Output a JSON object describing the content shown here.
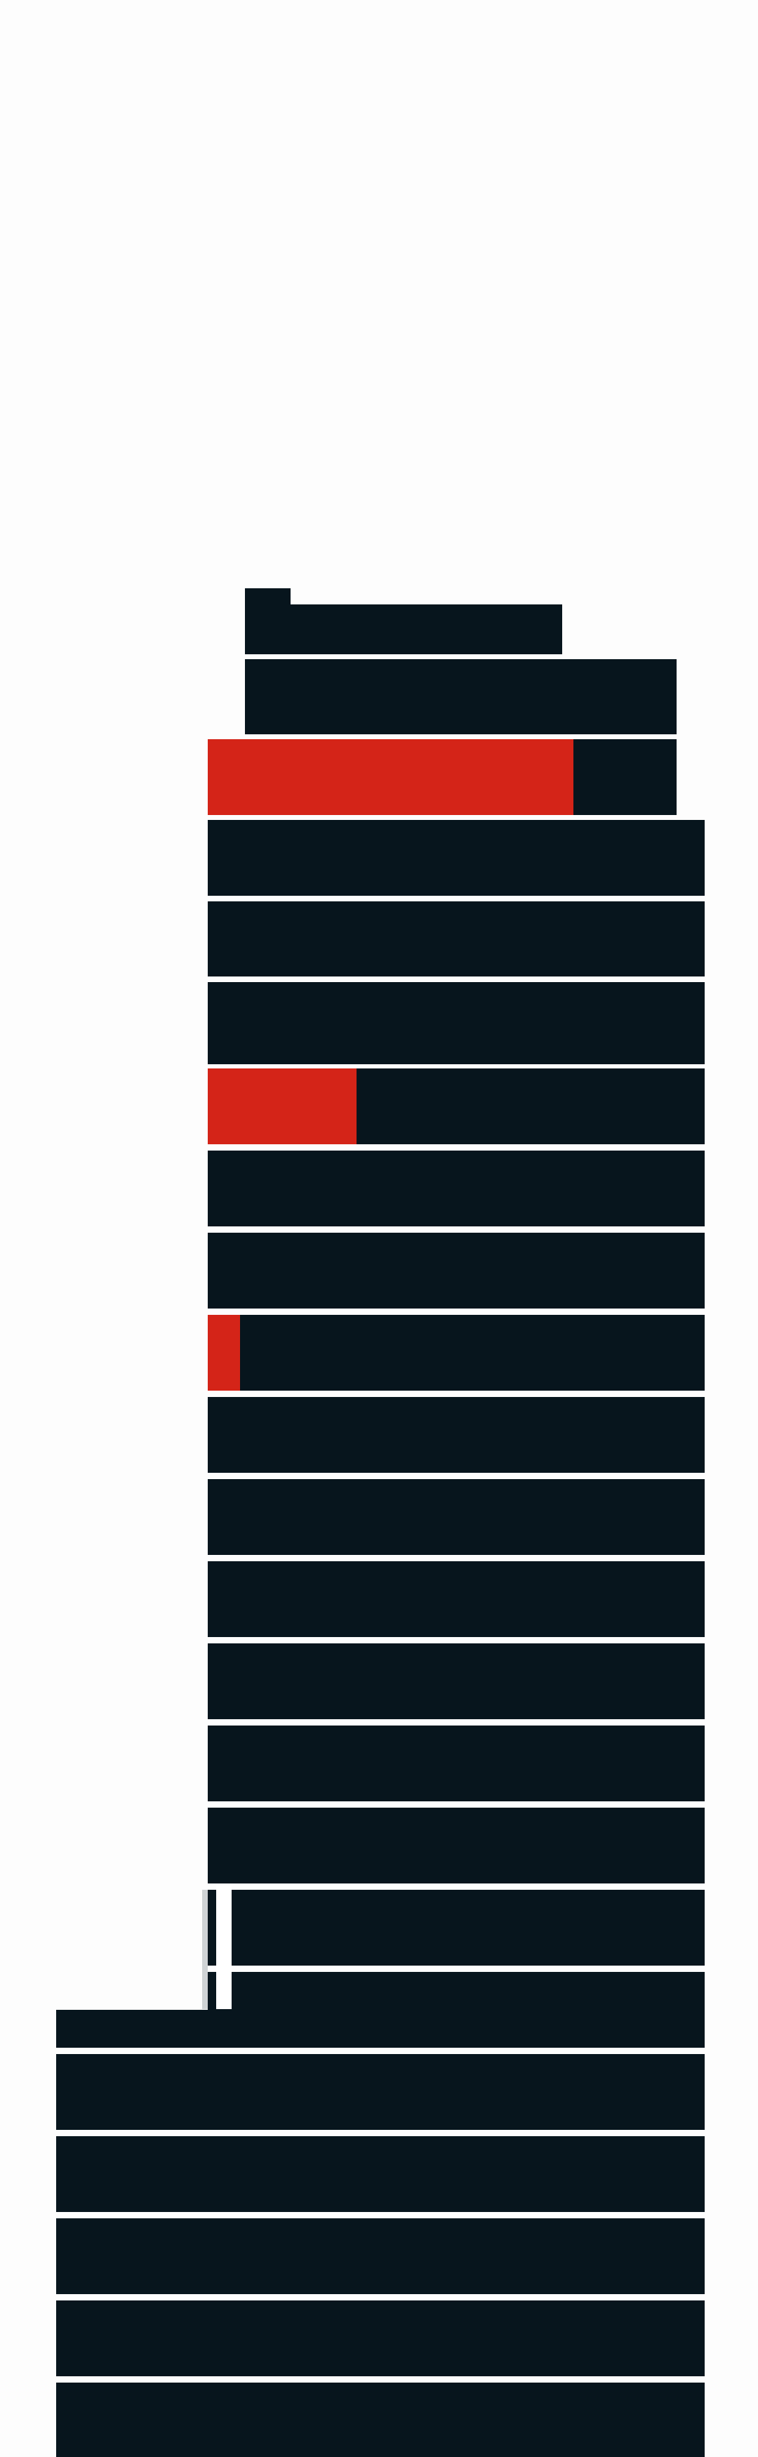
{
  "colors": {
    "background": "#fdfdfd",
    "building": "#07151d",
    "highlight": "#d42418",
    "separator": "#ffffff"
  },
  "building": {
    "floor_count": 22,
    "highlighted_floors": [
      {
        "floor_index": 1,
        "filled_fraction": 0.78
      },
      {
        "floor_index": 5,
        "filled_fraction": 0.3
      },
      {
        "floor_index": 8,
        "filled_fraction": 0.065
      }
    ]
  }
}
